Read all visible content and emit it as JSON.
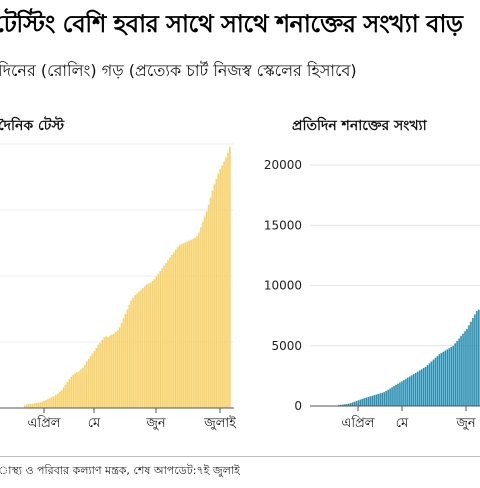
{
  "title": "টেস্টিং বেশি হবার সাথে সাথে শনাক্তের সংখ্যা বাড়",
  "subtitle": "দিনের (রোলিং) গড় (প্রত্যেক চার্ট নিজস্ব স্কেলের হিসাবে)",
  "source": "াস্থ্য ও পরিবার কল্যাণ মন্ত্রক, শেষ আপডেট:৭ই জুলাই",
  "colors": {
    "tests": "#f7d26a",
    "cases": "#2b8fb2",
    "grid": "#dcdcdc",
    "axis": "#555555"
  },
  "chart_data": [
    {
      "type": "bar",
      "title": "দৈনিক টেস্ট",
      "x_ticks": [
        "এপ্রিল",
        "মে",
        "জুন",
        "জুলাই"
      ],
      "values": [
        300,
        380,
        420,
        450,
        480,
        520,
        560,
        600,
        650,
        700,
        800,
        900,
        1000,
        1100,
        1200,
        1300,
        1450,
        1600,
        1800,
        2000,
        2300,
        2600,
        2900,
        3200,
        3500,
        3700,
        3900,
        4000,
        4100,
        4300,
        4500,
        4800,
        5200,
        5500,
        5800,
        6100,
        6400,
        6700,
        7100,
        7300,
        7600,
        7900,
        8000,
        7900,
        8100,
        8200,
        8300,
        8500,
        8700,
        9000,
        9500,
        10000,
        10500,
        11000,
        11500,
        12000,
        12300,
        12600,
        12800,
        13000,
        13200,
        13400,
        13600,
        13800,
        13900,
        14000,
        14200,
        14400,
        14700,
        15000,
        15300,
        15600,
        15900,
        16200,
        16500,
        16800,
        17100,
        17400,
        17700,
        18000,
        18200,
        18300,
        18400,
        18500,
        18600,
        18700,
        18800,
        18900,
        19000,
        19200,
        19600,
        20200,
        20800,
        21400,
        22000,
        22700,
        23500,
        24300,
        25000,
        25600,
        26200,
        26700,
        27100,
        27500,
        28000,
        28500,
        29200
      ]
    },
    {
      "type": "bar",
      "title": "প্রতিদিন শনাক্তের সংখ্যা",
      "y_ticks": [
        "0",
        "5000",
        "10000",
        "15000",
        "20000"
      ],
      "ylim": [
        0,
        20000
      ],
      "x_ticks": [
        "এপ্রিল",
        "মে",
        "জুন"
      ],
      "values": [
        80,
        100,
        120,
        140,
        170,
        200,
        240,
        300,
        360,
        420,
        480,
        540,
        600,
        650,
        700,
        750,
        800,
        850,
        900,
        950,
        1000,
        1050,
        1100,
        1150,
        1250,
        1350,
        1450,
        1550,
        1650,
        1750,
        1850,
        1950,
        2050,
        2150,
        2250,
        2350,
        2450,
        2550,
        2650,
        2750,
        2850,
        2950,
        3050,
        3150,
        3250,
        3400,
        3550,
        3700,
        3850,
        4000,
        4150,
        4300,
        4400,
        4500,
        4600,
        4700,
        4800,
        4900,
        5000,
        5200,
        5400,
        5600,
        5800,
        6000,
        6200,
        6400,
        6700,
        7000,
        7300,
        7600,
        7900,
        8000
      ]
    }
  ]
}
